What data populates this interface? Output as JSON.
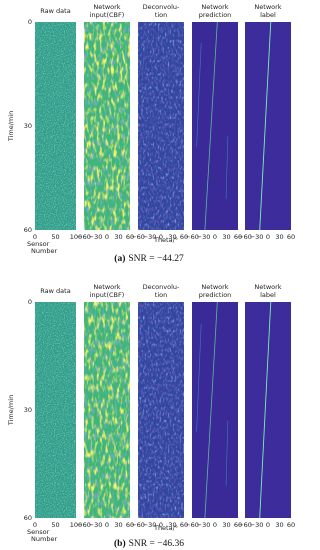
{
  "figures": [
    {
      "caption_label": "(a)",
      "caption": "SNR = −44.27",
      "y_axis_label": "Time/min",
      "y_ticks": [
        "0",
        "30",
        "60"
      ],
      "theta_label": "Theta/°",
      "columns": [
        {
          "title_lines": [
            "Raw data"
          ],
          "x_ticks": [
            "0",
            "50",
            "100"
          ],
          "x_label_lines": [
            "Sensor",
            "Number"
          ]
        },
        {
          "title_lines": [
            "Network",
            "input(CBF)"
          ],
          "x_ticks": [
            "−60",
            "−30",
            "0",
            "30",
            "60"
          ]
        },
        {
          "title_lines": [
            "Deconvolu-",
            "tion"
          ],
          "x_ticks": [
            "−60",
            "−30",
            "0",
            "30",
            "60"
          ]
        },
        {
          "title_lines": [
            "Network",
            "prediction"
          ],
          "x_ticks": [
            "−60",
            "−30",
            "0",
            "30",
            "60"
          ]
        },
        {
          "title_lines": [
            "Network",
            "label"
          ],
          "x_ticks": [
            "−60",
            "−30",
            "0",
            "30",
            "60"
          ]
        }
      ]
    },
    {
      "caption_label": "(b)",
      "caption": "SNR = −46.36",
      "y_axis_label": "Time/min",
      "y_ticks": [
        "0",
        "30",
        "60"
      ],
      "theta_label": "Theta/°",
      "columns": [
        {
          "title_lines": [
            "Raw data"
          ],
          "x_ticks": [
            "0",
            "50",
            "100"
          ],
          "x_label_lines": [
            "Sensor",
            "Number"
          ]
        },
        {
          "title_lines": [
            "Network",
            "input(CBF)"
          ],
          "x_ticks": [
            "−60",
            "−30",
            "0",
            "30",
            "60"
          ]
        },
        {
          "title_lines": [
            "Deconvolu-",
            "tion"
          ],
          "x_ticks": [
            "−60",
            "−30",
            "0",
            "30",
            "60"
          ]
        },
        {
          "title_lines": [
            "Network",
            "prediction"
          ],
          "x_ticks": [
            "−60",
            "−30",
            "0",
            "30",
            "60"
          ]
        },
        {
          "title_lines": [
            "Network",
            "label"
          ],
          "x_ticks": [
            "−60",
            "−30",
            "0",
            "30",
            "60"
          ]
        }
      ]
    }
  ]
}
